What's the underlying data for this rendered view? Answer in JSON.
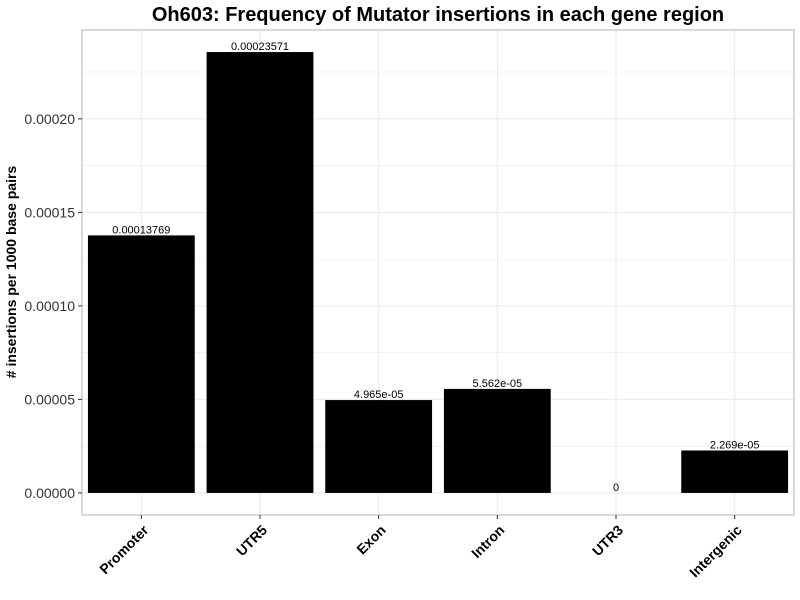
{
  "chart_data": {
    "type": "bar",
    "title": "Oh603: Frequency of Mutator insertions in each gene region",
    "xlabel": "",
    "ylabel": "# insertions per 1000 base pairs",
    "categories": [
      "Promoter",
      "UTR5",
      "Exon",
      "Intron",
      "UTR3",
      "Intergenic"
    ],
    "values": [
      0.00013769,
      0.00023571,
      4.965e-05,
      5.562e-05,
      0,
      2.269e-05
    ],
    "data_labels": [
      "0.00013769",
      "0.00023571",
      "4.965e-05",
      "5.562e-05",
      "0",
      "2.269e-05"
    ],
    "yticks": [
      0,
      5e-05,
      0.0001,
      0.00015,
      0.0002
    ],
    "ytick_labels": [
      "0.00000",
      "0.00005",
      "0.00010",
      "0.00015",
      "0.00020"
    ],
    "ylim": [
      -1.18e-05,
      0.0002475
    ],
    "grid": true,
    "bar_color": "#000000",
    "grid_color": "#ebebeb",
    "panel_border_color": "#b3b3b3"
  }
}
